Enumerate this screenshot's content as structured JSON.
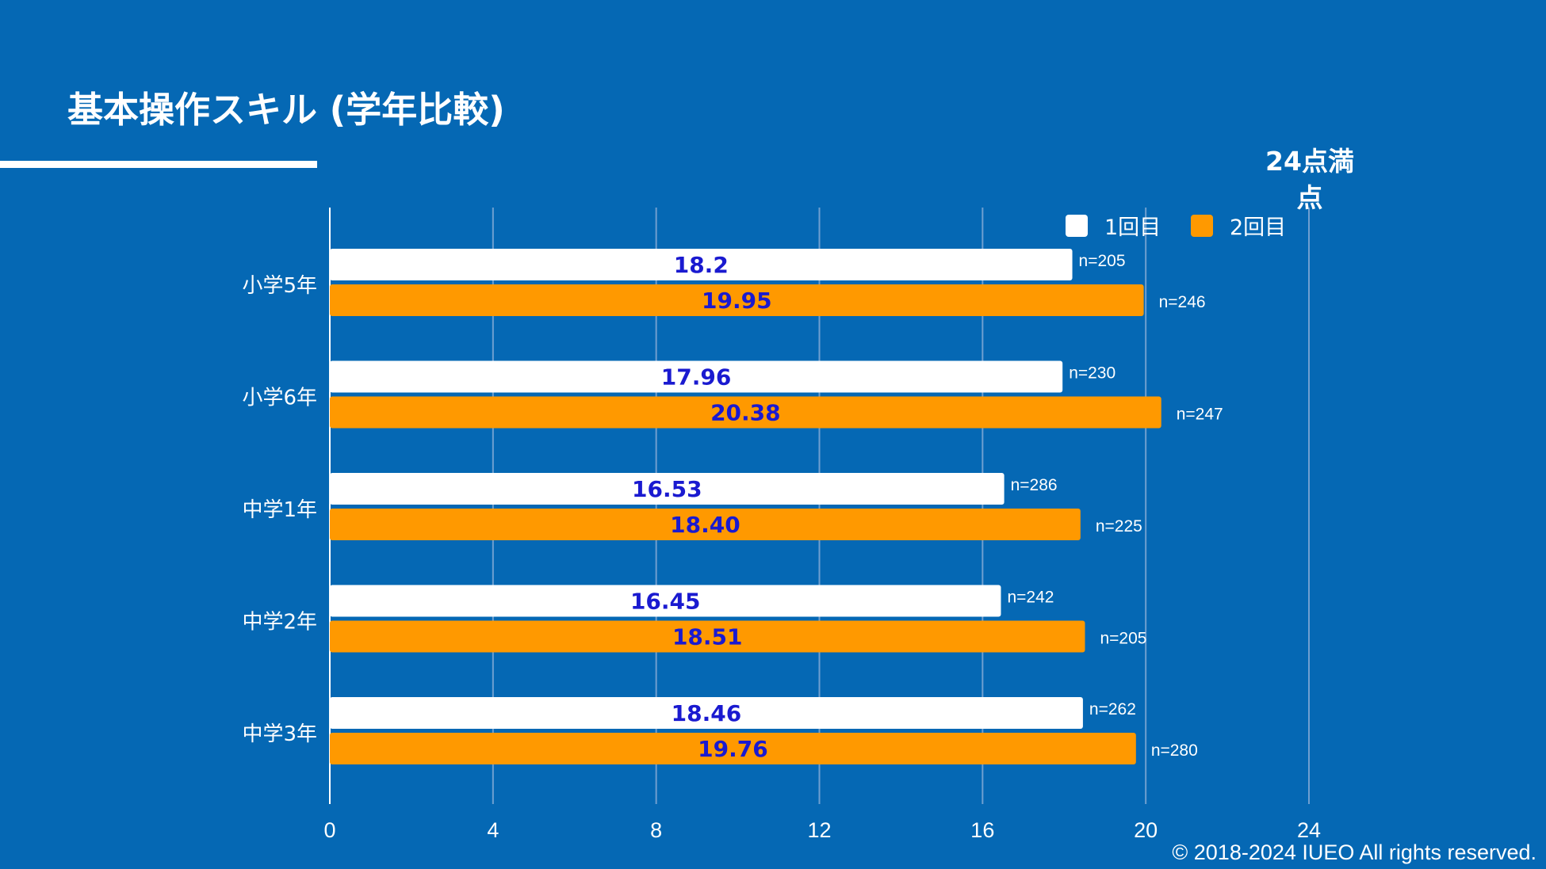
{
  "page": {
    "title": "基本操作スキル (学年比較)",
    "copyright": "© 2018-2024 IUEO All rights reserved."
  },
  "colors": {
    "background": "#0568b4",
    "series1": "#ffffff",
    "series2": "#ff9900",
    "value_label": "#1a1ad0",
    "text": "#ffffff",
    "grid": "#6f9fd0"
  },
  "chart_data": {
    "type": "bar",
    "orientation": "horizontal",
    "annotation": [
      "24点満",
      "点"
    ],
    "categories": [
      "小学5年",
      "小学6年",
      "中学1年",
      "中学2年",
      "中学3年"
    ],
    "series": [
      {
        "name": "1回目",
        "values": [
          18.2,
          17.96,
          16.53,
          16.45,
          18.46
        ],
        "value_labels": [
          "18.2",
          "17.96",
          "16.53",
          "16.45",
          "18.46"
        ],
        "n_labels": [
          "n=205",
          "n=230",
          "n=286",
          "n=242",
          "n=262"
        ]
      },
      {
        "name": "2回目",
        "values": [
          19.95,
          20.38,
          18.4,
          18.51,
          19.76
        ],
        "value_labels": [
          "19.95",
          "20.38",
          "18.40",
          "18.51",
          "19.76"
        ],
        "n_labels": [
          "n=246",
          "n=247",
          "n=225",
          "n=205",
          "n=280"
        ]
      }
    ],
    "xlim": [
      0,
      24
    ],
    "xticks": [
      0,
      4,
      8,
      12,
      16,
      20,
      24
    ],
    "grid": true,
    "legend_position": "top-right"
  }
}
